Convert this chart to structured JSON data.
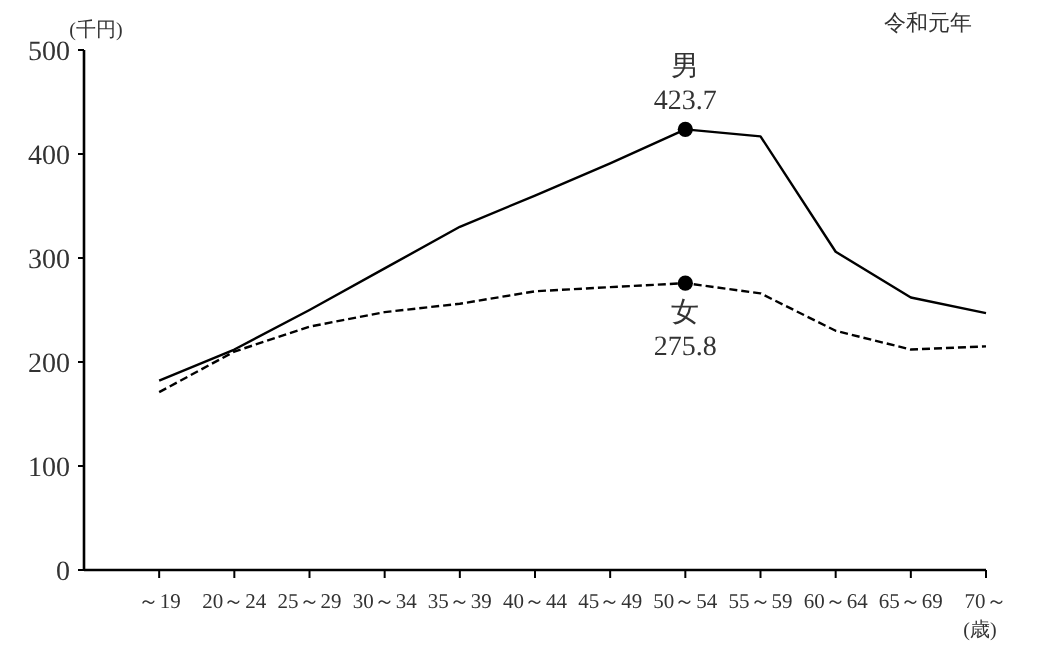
{
  "chart_data": {
    "type": "line",
    "title": "令和元年",
    "ylabel": "(千円)",
    "xlabel": "(歳)",
    "categories": [
      "～19",
      "20～24",
      "25～29",
      "30～34",
      "35～39",
      "40～44",
      "45～49",
      "50～54",
      "55～59",
      "60～64",
      "65～69",
      "70～"
    ],
    "series": [
      {
        "name": "男",
        "color": "#000000",
        "line_style": "solid",
        "values": [
          182,
          212,
          250,
          290,
          330,
          360,
          391,
          423.7,
          417,
          306,
          262,
          247
        ],
        "value_labels": [
          null,
          null,
          null,
          null,
          null,
          null,
          null,
          "423.7",
          null,
          null,
          null,
          null
        ]
      },
      {
        "name": "女",
        "color": "#000000",
        "line_style": "dashed",
        "values": [
          171,
          210,
          234,
          248,
          256,
          268,
          272,
          275.8,
          266,
          230,
          212,
          215
        ],
        "value_labels": [
          null,
          null,
          null,
          null,
          null,
          null,
          null,
          "275.8",
          null,
          null,
          null,
          null
        ]
      }
    ],
    "ylim": [
      0,
      500
    ],
    "yticks": [
      0,
      100,
      200,
      300,
      400,
      500
    ],
    "grid": false
  }
}
